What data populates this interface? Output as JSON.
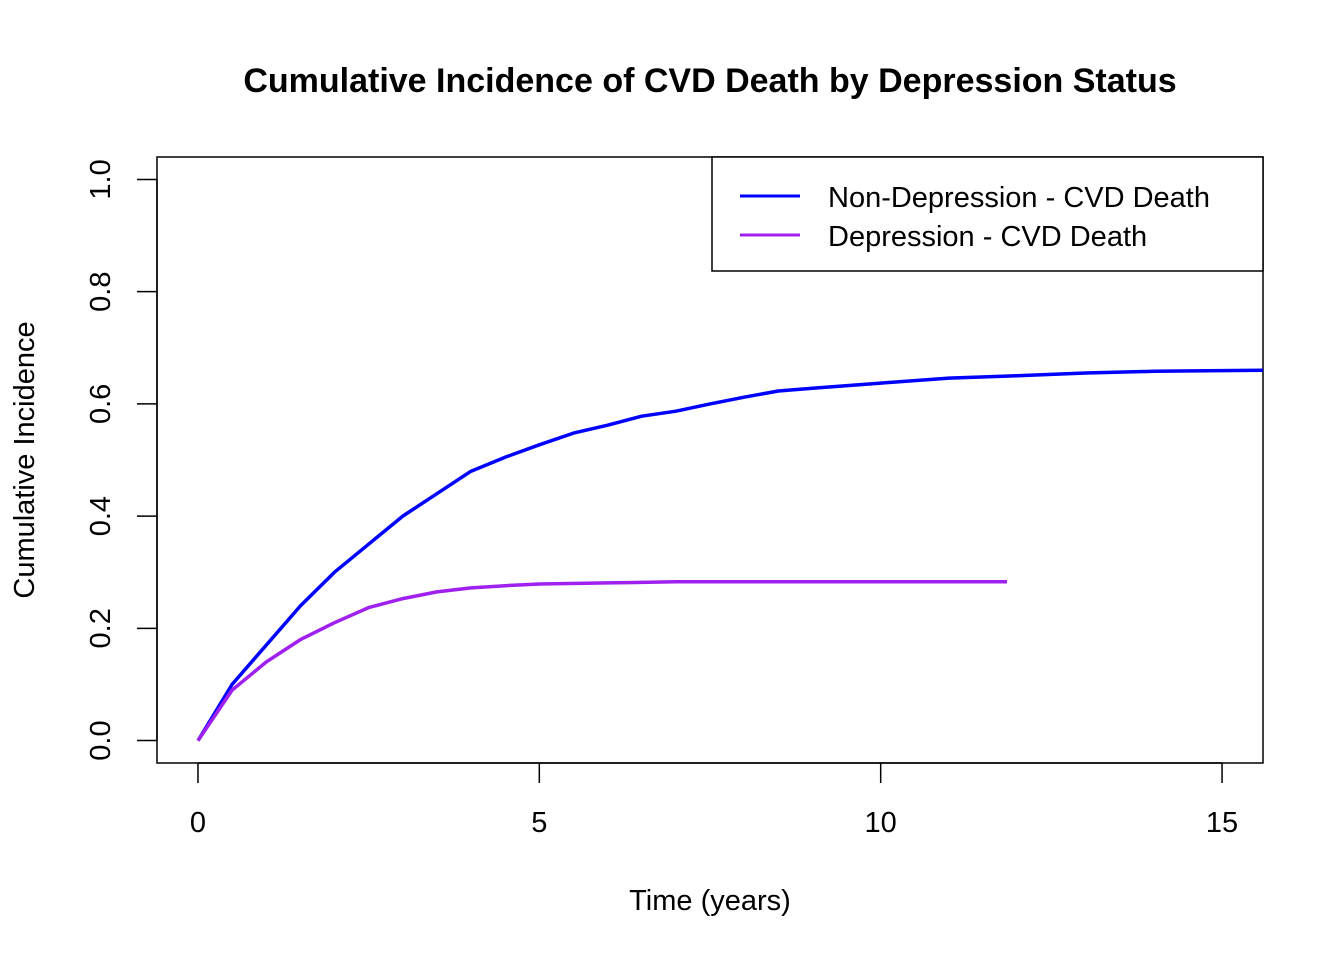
{
  "chart_data": {
    "type": "line",
    "title": "Cumulative Incidence of CVD Death by Depression Status",
    "xlabel": "Time (years)",
    "ylabel": "Cumulative Incidence",
    "xlim": [
      -0.6,
      15.6
    ],
    "ylim": [
      -0.04,
      1.04
    ],
    "xticks": [
      0,
      5,
      10,
      15
    ],
    "xtick_labels": [
      "0",
      "5",
      "10",
      "15"
    ],
    "yticks": [
      0,
      0.2,
      0.4,
      0.6,
      0.8,
      1.0
    ],
    "ytick_labels": [
      "0.0",
      "0.2",
      "0.4",
      "0.6",
      "0.8",
      "1.0"
    ],
    "grid": false,
    "legend_position": "top-right",
    "series": [
      {
        "name": "Non-Depression - CVD Death",
        "color": "#0000FF",
        "x": [
          0,
          0.5,
          1,
          1.5,
          2,
          2.5,
          3,
          3.5,
          4,
          4.5,
          5,
          5.5,
          6,
          6.5,
          7,
          7.5,
          8,
          8.5,
          9,
          10,
          11,
          12,
          13,
          14,
          15.6
        ],
        "y": [
          0,
          0.1,
          0.17,
          0.24,
          0.3,
          0.35,
          0.4,
          0.44,
          0.48,
          0.505,
          0.527,
          0.548,
          0.562,
          0.578,
          0.587,
          0.6,
          0.612,
          0.623,
          0.628,
          0.637,
          0.646,
          0.65,
          0.655,
          0.658,
          0.66
        ]
      },
      {
        "name": "Depression - CVD Death",
        "color": "#A020F0",
        "x": [
          0,
          0.5,
          1,
          1.5,
          2,
          2.5,
          3,
          3.5,
          4,
          4.5,
          5,
          6,
          7,
          8,
          11.85
        ],
        "y": [
          0,
          0.09,
          0.14,
          0.18,
          0.21,
          0.237,
          0.253,
          0.265,
          0.272,
          0.276,
          0.279,
          0.281,
          0.283,
          0.283,
          0.283
        ]
      }
    ]
  }
}
